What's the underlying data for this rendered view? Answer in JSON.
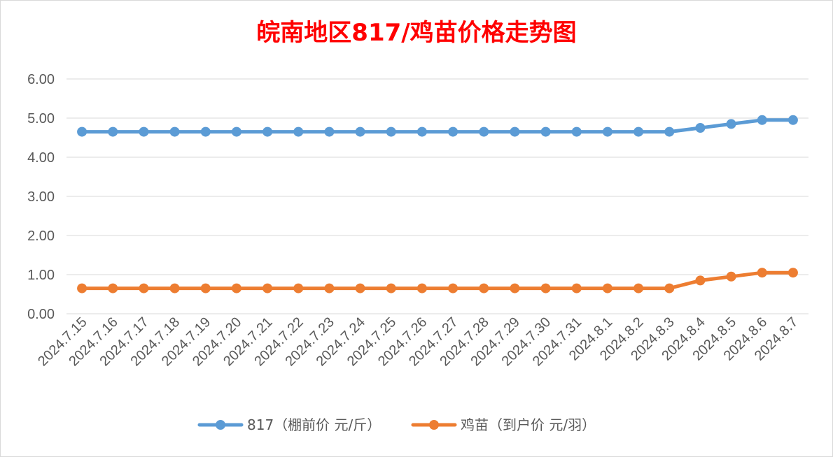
{
  "chart_data": {
    "type": "line",
    "title": "皖南地区817/鸡苗价格走势图",
    "categories": [
      "2024.7.15",
      "2024.7.16",
      "2024.7.17",
      "2024.7.18",
      "2024.7.19",
      "2024.7.20",
      "2024.7.21",
      "2024.7.22",
      "2024.7.23",
      "2024.7.24",
      "2024.7.25",
      "2024.7.26",
      "2024.7.27",
      "2024.7.28",
      "2024.7.29",
      "2024.7.30",
      "2024.7.31",
      "2024.8.1",
      "2024.8.2",
      "2024.8.3",
      "2024.8.4",
      "2024.8.5",
      "2024.8.6",
      "2024.8.7"
    ],
    "series": [
      {
        "name": "817（棚前价 元/斤）",
        "color": "#5B9BD5",
        "values": [
          4.65,
          4.65,
          4.65,
          4.65,
          4.65,
          4.65,
          4.65,
          4.65,
          4.65,
          4.65,
          4.65,
          4.65,
          4.65,
          4.65,
          4.65,
          4.65,
          4.65,
          4.65,
          4.65,
          4.65,
          4.75,
          4.85,
          4.95,
          4.95
        ]
      },
      {
        "name": "鸡苗（到户价 元/羽）",
        "color": "#ED7D31",
        "values": [
          0.65,
          0.65,
          0.65,
          0.65,
          0.65,
          0.65,
          0.65,
          0.65,
          0.65,
          0.65,
          0.65,
          0.65,
          0.65,
          0.65,
          0.65,
          0.65,
          0.65,
          0.65,
          0.65,
          0.65,
          0.85,
          0.95,
          1.05,
          1.05
        ]
      }
    ],
    "yticks": [
      "0.00",
      "1.00",
      "2.00",
      "3.00",
      "4.00",
      "5.00",
      "6.00"
    ],
    "ylim": [
      0,
      6
    ],
    "grid": true,
    "legend": "bottom",
    "title_color": "#FF0000"
  }
}
